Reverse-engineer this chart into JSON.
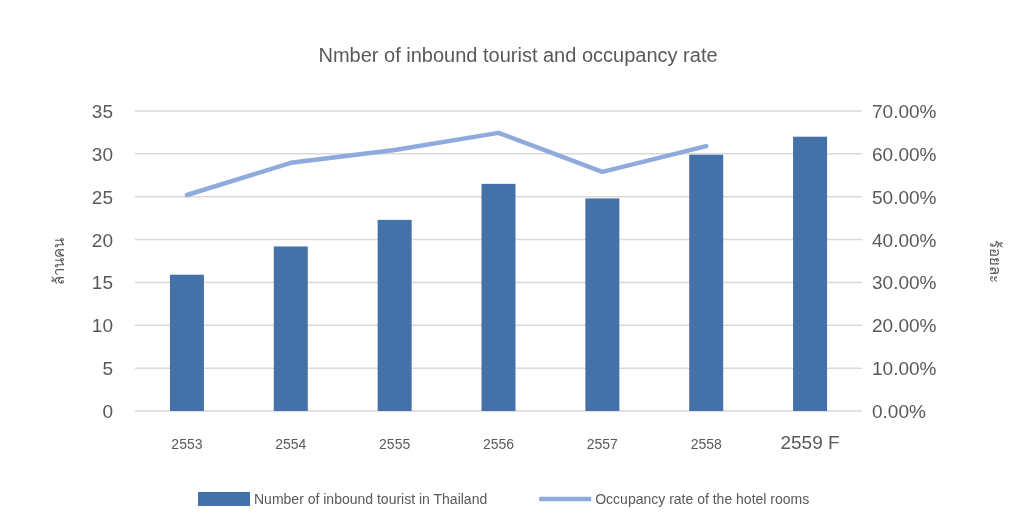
{
  "chart_data": {
    "type": "bar",
    "title": "Nmber of inbound tourist and occupancy rate",
    "ylabel": "ล้านคน",
    "y2label": "ร้อยละ",
    "categories": [
      "2553",
      "2554",
      "2555",
      "2556",
      "2557",
      "2558",
      "2559 F"
    ],
    "series": [
      {
        "name": "Number of inbound tourist in Thailand",
        "color": "#4472a8",
        "values": [
          15.9,
          19.2,
          22.3,
          26.5,
          24.8,
          29.9,
          32
        ]
      },
      {
        "name": "Occupancy rate of the hotel rooms",
        "type": "line",
        "axis": "y2",
        "color": "#8faadc",
        "values": [
          50.4,
          57.9,
          60.9,
          64.9,
          55.8,
          61.8,
          null
        ]
      }
    ],
    "ylim": [
      0,
      35
    ],
    "yticks": [
      0,
      5,
      10,
      15,
      20,
      25,
      30,
      35
    ],
    "y2lim": [
      0,
      70
    ],
    "y2ticks": [
      {
        "value": 0,
        "label": "0.00%"
      },
      {
        "value": 10,
        "label": "10.00%"
      },
      {
        "value": 20,
        "label": "20.00%"
      },
      {
        "value": 30,
        "label": "30.00%"
      },
      {
        "value": 40,
        "label": "40.00%"
      },
      {
        "value": 50,
        "label": "50.00%"
      },
      {
        "value": 60,
        "label": "60.00%"
      },
      {
        "value": 70,
        "label": "70.00%"
      }
    ],
    "grid": "y",
    "legend": "bottom",
    "marker": "none"
  }
}
